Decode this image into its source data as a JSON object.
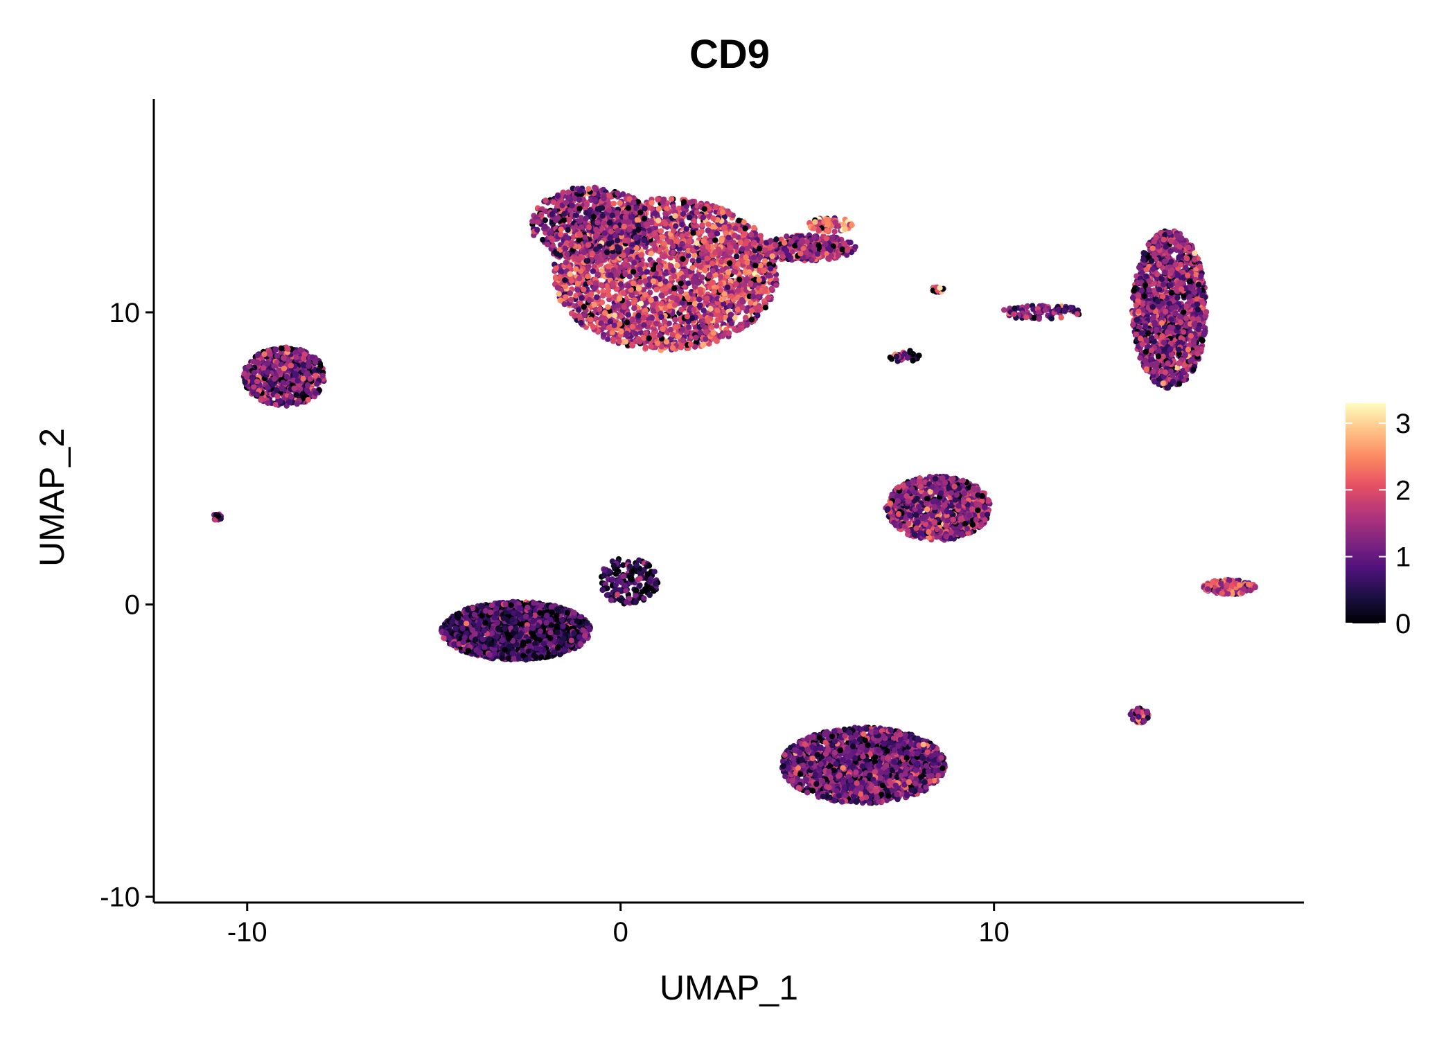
{
  "chart_data": {
    "type": "scatter",
    "title": "CD9",
    "xlabel": "UMAP_1",
    "ylabel": "UMAP_2",
    "xlim": [
      -12.5,
      18.3
    ],
    "ylim": [
      -10.2,
      17.3
    ],
    "xticks": [
      -10,
      0,
      10
    ],
    "xtick_labels": [
      "-10",
      "0",
      "10"
    ],
    "yticks": [
      -10,
      0,
      10
    ],
    "yticks_labels_note": "",
    "ytick_labels": [
      "-10",
      "0",
      "10"
    ],
    "grid": false,
    "point_count": 12000,
    "color_scale": {
      "name": "magma",
      "min": 0,
      "max": 3.3,
      "ticks": [
        0,
        1,
        2,
        3
      ],
      "tick_labels": [
        "0",
        "1",
        "2",
        "3"
      ],
      "stops": [
        "#000004",
        "#1c1044",
        "#4f127b",
        "#812581",
        "#b5367a",
        "#e55064",
        "#fb8761",
        "#fec287",
        "#fcfdbf"
      ],
      "legend_position": "right"
    },
    "clusters": [
      {
        "name": "top-center large cluster",
        "center": [
          1.2,
          11.3
        ],
        "spread": [
          3.0,
          2.6
        ],
        "n": 2600,
        "mean_expr": 1.75
      },
      {
        "name": "top-center upper-left lobe",
        "center": [
          -0.8,
          13.0
        ],
        "spread": [
          1.6,
          1.3
        ],
        "n": 650,
        "mean_expr": 1.3
      },
      {
        "name": "top-center strand",
        "center": [
          5.0,
          12.2
        ],
        "spread": [
          1.3,
          0.45
        ],
        "n": 320,
        "mean_expr": 1.5
      },
      {
        "name": "top-center tip",
        "center": [
          5.6,
          13.0
        ],
        "spread": [
          0.6,
          0.25
        ],
        "n": 80,
        "mean_expr": 2.3
      },
      {
        "name": "right elongated cluster",
        "center": [
          14.7,
          10.1
        ],
        "spread": [
          1.0,
          2.7
        ],
        "n": 1500,
        "mean_expr": 1.25
      },
      {
        "name": "left triangular cluster",
        "center": [
          -9.0,
          7.8
        ],
        "spread": [
          1.1,
          1.0
        ],
        "n": 650,
        "mean_expr": 1.2
      },
      {
        "name": "center-right cluster",
        "center": [
          8.5,
          3.3
        ],
        "spread": [
          1.4,
          1.1
        ],
        "n": 1150,
        "mean_expr": 1.3
      },
      {
        "name": "lower-left cluster",
        "center": [
          -2.8,
          -0.9
        ],
        "spread": [
          2.0,
          1.0
        ],
        "n": 1800,
        "mean_expr": 0.7
      },
      {
        "name": "lower-left tail",
        "center": [
          0.2,
          0.8
        ],
        "spread": [
          0.8,
          0.8
        ],
        "n": 180,
        "mean_expr": 0.55
      },
      {
        "name": "bottom cluster",
        "center": [
          6.5,
          -5.5
        ],
        "spread": [
          2.2,
          1.3
        ],
        "n": 1900,
        "mean_expr": 1.05
      },
      {
        "name": "small right cluster",
        "center": [
          16.3,
          0.6
        ],
        "spread": [
          0.7,
          0.25
        ],
        "n": 170,
        "mean_expr": 1.9
      },
      {
        "name": "tiny bottom-right cluster",
        "center": [
          13.9,
          -3.8
        ],
        "spread": [
          0.25,
          0.25
        ],
        "n": 60,
        "mean_expr": 1.4
      },
      {
        "name": "middle thin streak",
        "center": [
          11.3,
          10.0
        ],
        "spread": [
          1.1,
          0.25
        ],
        "n": 90,
        "mean_expr": 1.2
      },
      {
        "name": "small speck A",
        "center": [
          7.6,
          8.5
        ],
        "spread": [
          0.4,
          0.2
        ],
        "n": 30,
        "mean_expr": 0.9
      },
      {
        "name": "small speck B",
        "center": [
          8.5,
          10.8
        ],
        "spread": [
          0.15,
          0.12
        ],
        "n": 15,
        "mean_expr": 2.0
      },
      {
        "name": "far-left tiny cluster",
        "center": [
          -10.8,
          3.0
        ],
        "spread": [
          0.12,
          0.12
        ],
        "n": 15,
        "mean_expr": 1.0
      }
    ]
  }
}
